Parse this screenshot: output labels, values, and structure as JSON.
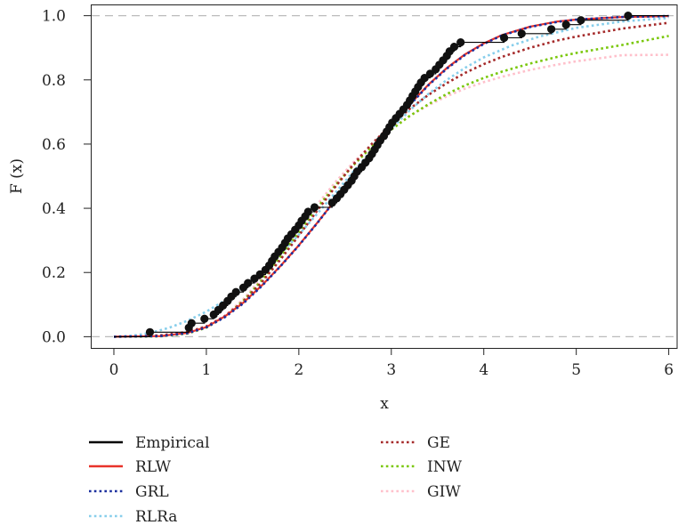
{
  "chart_data": {
    "type": "line",
    "xlabel": "x",
    "ylabel": "F (x)",
    "xlim": [
      -0.25,
      6.1
    ],
    "ylim": [
      -0.035,
      1.035
    ],
    "xticks": [
      0,
      1,
      2,
      3,
      4,
      5,
      6
    ],
    "yticks": [
      0.0,
      0.2,
      0.4,
      0.6,
      0.8,
      1.0
    ],
    "xtick_labels": [
      "0",
      "1",
      "2",
      "3",
      "4",
      "5",
      "6"
    ],
    "ytick_labels": [
      "0.0",
      "0.2",
      "0.4",
      "0.6",
      "0.8",
      "1.0"
    ],
    "reference_lines": [
      0,
      1
    ],
    "grid": false,
    "legend_position": "bottom",
    "series": [
      {
        "name": "Empirical",
        "color": "#000000",
        "style": "step-points",
        "x": [
          0.39,
          0.81,
          0.84,
          0.98,
          1.08,
          1.13,
          1.18,
          1.23,
          1.27,
          1.32,
          1.4,
          1.45,
          1.52,
          1.58,
          1.64,
          1.68,
          1.71,
          1.74,
          1.78,
          1.82,
          1.85,
          1.88,
          1.92,
          1.96,
          2.0,
          2.03,
          2.07,
          2.1,
          2.17,
          2.36,
          2.41,
          2.45,
          2.49,
          2.53,
          2.57,
          2.6,
          2.63,
          2.68,
          2.72,
          2.76,
          2.79,
          2.82,
          2.85,
          2.88,
          2.92,
          2.95,
          2.98,
          3.01,
          3.05,
          3.09,
          3.13,
          3.17,
          3.2,
          3.23,
          3.26,
          3.29,
          3.32,
          3.36,
          3.42,
          3.48,
          3.52,
          3.56,
          3.6,
          3.63,
          3.68,
          3.75,
          4.22,
          4.41,
          4.73,
          4.89,
          5.05,
          5.56
        ],
        "values": [
          0.014,
          0.028,
          0.042,
          0.056,
          0.069,
          0.083,
          0.097,
          0.111,
          0.125,
          0.139,
          0.153,
          0.167,
          0.181,
          0.194,
          0.208,
          0.222,
          0.236,
          0.25,
          0.264,
          0.278,
          0.292,
          0.306,
          0.319,
          0.333,
          0.347,
          0.361,
          0.375,
          0.389,
          0.403,
          0.417,
          0.431,
          0.444,
          0.458,
          0.472,
          0.486,
          0.5,
          0.514,
          0.528,
          0.542,
          0.556,
          0.569,
          0.583,
          0.597,
          0.611,
          0.625,
          0.639,
          0.653,
          0.667,
          0.681,
          0.694,
          0.708,
          0.722,
          0.736,
          0.75,
          0.764,
          0.778,
          0.792,
          0.806,
          0.819,
          0.833,
          0.847,
          0.861,
          0.875,
          0.889,
          0.903,
          0.917,
          0.931,
          0.944,
          0.958,
          0.972,
          0.986,
          1.0
        ]
      },
      {
        "name": "RLW",
        "color": "#e8332a",
        "style": "solid",
        "x": [
          0.0,
          0.5,
          0.8,
          1.0,
          1.2,
          1.4,
          1.6,
          1.8,
          2.0,
          2.2,
          2.4,
          2.6,
          2.8,
          3.0,
          3.2,
          3.4,
          3.6,
          3.8,
          4.0,
          4.2,
          4.5,
          4.8,
          5.0,
          5.5,
          6.0
        ],
        "values": [
          0.0,
          0.002,
          0.012,
          0.03,
          0.063,
          0.106,
          0.16,
          0.22,
          0.285,
          0.355,
          0.428,
          0.504,
          0.58,
          0.655,
          0.724,
          0.785,
          0.837,
          0.88,
          0.914,
          0.94,
          0.966,
          0.982,
          0.988,
          0.996,
          0.999
        ]
      },
      {
        "name": "GRL",
        "color": "#1a2f9e",
        "style": "dotted",
        "x": [
          0.0,
          0.5,
          0.8,
          1.0,
          1.2,
          1.4,
          1.6,
          1.8,
          2.0,
          2.2,
          2.4,
          2.6,
          2.8,
          3.0,
          3.2,
          3.4,
          3.6,
          3.8,
          4.0,
          4.2,
          4.5,
          4.8,
          5.0,
          5.5,
          6.0
        ],
        "values": [
          0.0,
          0.002,
          0.011,
          0.029,
          0.061,
          0.104,
          0.158,
          0.219,
          0.284,
          0.354,
          0.428,
          0.504,
          0.58,
          0.654,
          0.722,
          0.783,
          0.835,
          0.878,
          0.912,
          0.939,
          0.965,
          0.981,
          0.988,
          0.996,
          0.999
        ]
      },
      {
        "name": "RLRa",
        "color": "#87ceeb",
        "style": "dotted",
        "x": [
          0.0,
          0.2,
          0.4,
          0.6,
          0.8,
          1.0,
          1.2,
          1.4,
          1.6,
          1.8,
          2.0,
          2.2,
          2.4,
          2.6,
          2.8,
          3.0,
          3.2,
          3.4,
          3.6,
          3.8,
          4.0,
          4.3,
          4.6,
          5.0,
          5.5,
          6.0
        ],
        "values": [
          0.0,
          0.003,
          0.012,
          0.028,
          0.05,
          0.078,
          0.113,
          0.155,
          0.203,
          0.258,
          0.318,
          0.383,
          0.45,
          0.518,
          0.585,
          0.648,
          0.705,
          0.756,
          0.8,
          0.838,
          0.87,
          0.907,
          0.935,
          0.962,
          0.982,
          0.993
        ]
      },
      {
        "name": "GE",
        "color": "#a52a2a",
        "style": "dotted",
        "x": [
          0.0,
          0.5,
          0.8,
          1.0,
          1.2,
          1.4,
          1.6,
          1.8,
          2.0,
          2.2,
          2.4,
          2.6,
          2.8,
          3.0,
          3.2,
          3.4,
          3.6,
          3.8,
          4.0,
          4.2,
          4.5,
          4.8,
          5.0,
          5.5,
          6.0
        ],
        "values": [
          0.0,
          0.004,
          0.015,
          0.032,
          0.064,
          0.11,
          0.17,
          0.24,
          0.315,
          0.393,
          0.469,
          0.54,
          0.604,
          0.66,
          0.71,
          0.753,
          0.79,
          0.822,
          0.849,
          0.872,
          0.9,
          0.923,
          0.935,
          0.96,
          0.978
        ]
      },
      {
        "name": "INW",
        "color": "#7ac70c",
        "style": "dotted",
        "x": [
          0.0,
          0.5,
          0.8,
          1.0,
          1.2,
          1.4,
          1.6,
          1.8,
          2.0,
          2.2,
          2.4,
          2.6,
          2.8,
          3.0,
          3.2,
          3.4,
          3.6,
          3.8,
          4.0,
          4.2,
          4.5,
          4.8,
          5.0,
          5.5,
          6.0
        ],
        "values": [
          0.0,
          0.001,
          0.01,
          0.028,
          0.062,
          0.112,
          0.176,
          0.249,
          0.326,
          0.402,
          0.473,
          0.537,
          0.595,
          0.645,
          0.688,
          0.724,
          0.756,
          0.783,
          0.806,
          0.826,
          0.851,
          0.872,
          0.884,
          0.909,
          0.937
        ]
      },
      {
        "name": "GIW",
        "color": "#ffc0cb",
        "style": "dotted",
        "x": [
          0.0,
          0.5,
          0.8,
          1.0,
          1.2,
          1.4,
          1.6,
          1.8,
          2.0,
          2.2,
          2.4,
          2.6,
          2.8,
          3.0,
          3.2,
          3.4,
          3.6,
          3.8,
          4.0,
          4.2,
          4.5,
          4.8,
          5.0,
          5.5,
          6.0
        ],
        "values": [
          0.0,
          0.002,
          0.012,
          0.03,
          0.065,
          0.117,
          0.183,
          0.258,
          0.336,
          0.412,
          0.483,
          0.546,
          0.601,
          0.648,
          0.688,
          0.721,
          0.749,
          0.773,
          0.793,
          0.81,
          0.831,
          0.848,
          0.858,
          0.877,
          0.878
        ]
      }
    ]
  }
}
